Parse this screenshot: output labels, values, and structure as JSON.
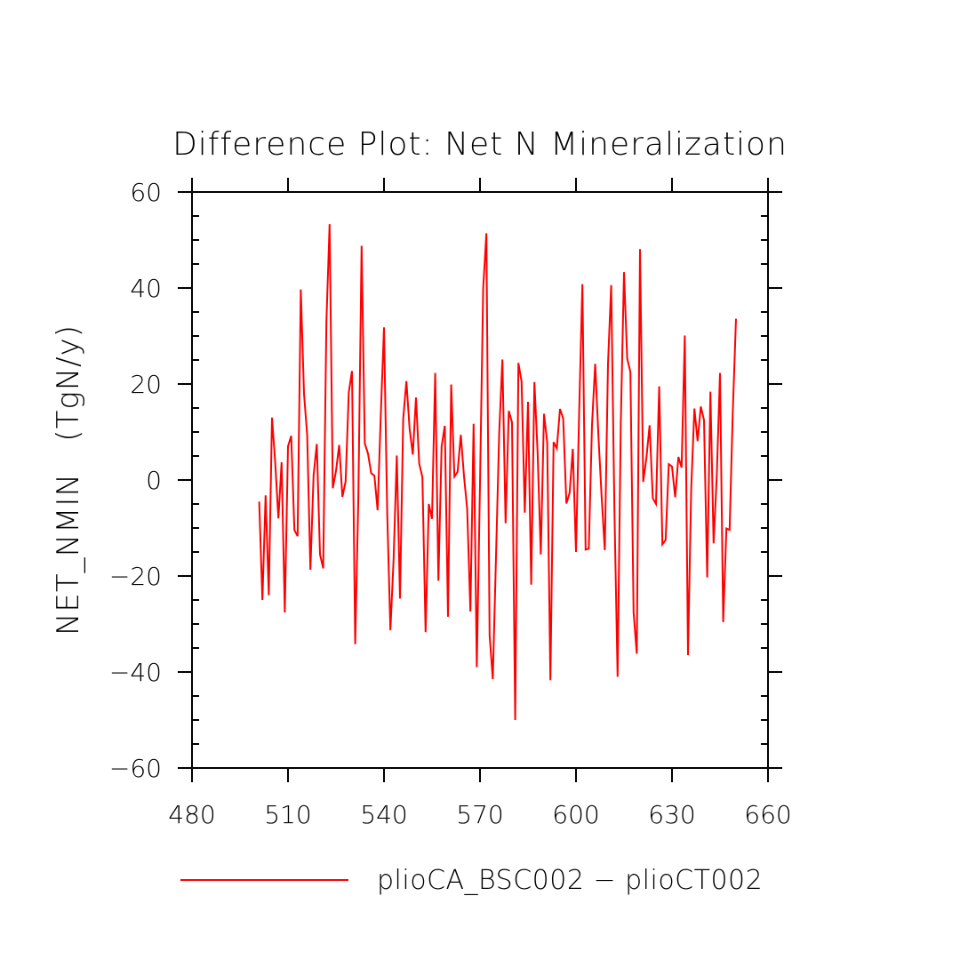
{
  "chart_data": {
    "type": "line",
    "title": "Difference Plot: Net N Mineralization",
    "xlabel": "",
    "ylabel": "NET_NMIN   (TgN/y)",
    "xlim": [
      480,
      660
    ],
    "ylim": [
      -60,
      60
    ],
    "x_ticks": [
      480,
      510,
      540,
      570,
      600,
      630,
      660
    ],
    "x_tick_labels": [
      "480",
      "510",
      "540",
      "570",
      "600",
      "630",
      "660"
    ],
    "y_ticks": [
      -60,
      -40,
      -20,
      0,
      20,
      40,
      60
    ],
    "y_tick_labels": [
      "−60",
      "−40",
      "−20",
      "0",
      "20",
      "40",
      "60"
    ],
    "grid": false,
    "legend_position": "bottom",
    "colors": {
      "series": "#ff0000",
      "axes": "#000000"
    },
    "series": [
      {
        "name": "plioCA_BSC002 − plioCT002",
        "x": [
          501,
          502,
          503,
          504,
          505,
          506,
          507,
          508,
          509,
          510,
          511,
          512,
          513,
          514,
          515,
          516,
          517,
          518,
          519,
          520,
          521,
          522,
          523,
          524,
          525,
          526,
          527,
          528,
          529,
          530,
          531,
          532,
          533,
          534,
          535,
          536,
          537,
          538,
          539,
          540,
          541,
          542,
          543,
          544,
          545,
          546,
          547,
          548,
          549,
          550,
          551,
          552,
          553,
          554,
          555,
          556,
          557,
          558,
          559,
          560,
          561,
          562,
          563,
          564,
          565,
          566,
          567,
          568,
          569,
          570,
          571,
          572,
          573,
          574,
          575,
          576,
          577,
          578,
          579,
          580,
          581,
          582,
          583,
          584,
          585,
          586,
          587,
          588,
          589,
          590,
          591,
          592,
          593,
          594,
          595,
          596,
          597,
          598,
          599,
          600,
          601,
          602,
          603,
          604,
          605,
          606,
          607,
          608,
          609,
          610,
          611,
          612,
          613,
          614,
          615,
          616,
          617,
          618,
          619,
          620,
          621,
          622,
          623,
          624,
          625,
          626,
          627,
          628,
          629,
          630,
          631,
          632,
          633,
          634,
          635,
          636,
          637,
          638,
          639,
          640,
          641,
          642,
          643,
          644,
          645,
          646,
          647,
          648,
          649,
          650
        ],
        "values": [
          -4.5,
          -25,
          -3.2,
          -24,
          13,
          3.7,
          -8,
          3.7,
          -27.6,
          7,
          9.2,
          -10.4,
          -11.7,
          39.7,
          18,
          9.3,
          -18.7,
          1,
          7.5,
          -15.5,
          -18.4,
          33,
          53.3,
          -1.7,
          1.9,
          7.3,
          -3.5,
          -0.3,
          18.3,
          22.7,
          -34.2,
          -3,
          48.8,
          7.6,
          5.5,
          1.4,
          0.9,
          -6.3,
          13.6,
          31.8,
          -6.7,
          -31.3,
          -16.5,
          5.1,
          -24.7,
          12.7,
          20.6,
          10.7,
          5.3,
          17.2,
          3.4,
          0.6,
          -31.7,
          -5,
          -8.1,
          22.3,
          -21,
          7,
          11.3,
          -28.5,
          19.9,
          0.7,
          1.7,
          9.4,
          0.8,
          -6.1,
          -27.4,
          11.7,
          -39,
          -0.8,
          40,
          51.4,
          -32.3,
          -41.5,
          -16,
          9.8,
          25.1,
          -9,
          14.4,
          12,
          -50,
          24.4,
          20.5,
          -6.8,
          16.3,
          -21.8,
          20.4,
          5.7,
          -15.5,
          13.8,
          7.8,
          -41.7,
          7.9,
          6.6,
          14.8,
          12.8,
          -4.9,
          -2.7,
          6.5,
          -15,
          14.4,
          40.8,
          -14.5,
          -14.3,
          11.5,
          24.2,
          9.3,
          -3.4,
          -14.6,
          24.2,
          40.6,
          -6,
          -41,
          11.8,
          43.3,
          25.3,
          22.5,
          -27.6,
          -36.2,
          48.1,
          -0.4,
          4.6,
          11.4,
          -3.8,
          -5,
          19.5,
          -13.4,
          -12.5,
          3.3,
          2.8,
          -3.6,
          4.8,
          2.6,
          30.1,
          -36.5,
          -1.8,
          14.9,
          8.1,
          15.3,
          12.5,
          -20.3,
          18.4,
          -13.2,
          1,
          22.3,
          -29.6,
          -10.1,
          -10.4,
          14.3,
          33.6
        ]
      }
    ]
  }
}
